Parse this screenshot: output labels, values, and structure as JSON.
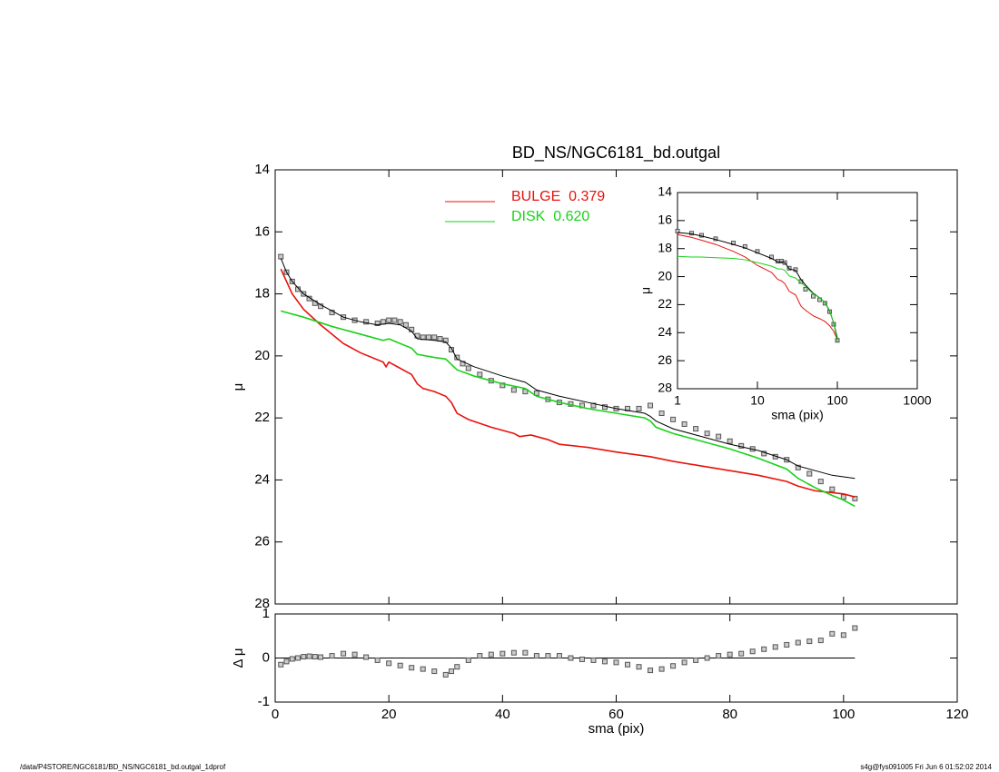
{
  "charts": [
    {
      "type": "line",
      "title": "BD_NS/NGC6181_bd.outgal",
      "ylabel": "μ",
      "xlim": [
        0,
        120
      ],
      "xticks": [
        0,
        20,
        40,
        60,
        80,
        100,
        120
      ],
      "ylim": [
        14,
        28
      ],
      "yticks": [
        14,
        16,
        18,
        20,
        22,
        24,
        26,
        28
      ],
      "y_inverted": true,
      "legend": "top-center",
      "series": [
        {
          "style": "marker",
          "color": "#555555",
          "x": [
            1,
            2,
            3,
            4,
            5,
            6,
            7,
            8,
            10,
            12,
            14,
            16,
            18,
            19,
            20,
            21,
            22,
            23,
            24,
            25,
            26,
            27,
            28,
            29,
            30,
            31,
            32,
            33,
            34,
            36,
            38,
            40,
            42,
            44,
            46,
            48,
            50,
            52,
            54,
            56,
            58,
            60,
            62,
            64,
            66,
            68,
            70,
            72,
            74,
            76,
            78,
            80,
            82,
            84,
            86,
            88,
            90,
            92,
            94,
            96,
            98,
            100,
            102
          ],
          "values": [
            16.8,
            17.3,
            17.6,
            17.85,
            18.0,
            18.15,
            18.3,
            18.4,
            18.6,
            18.75,
            18.85,
            18.9,
            18.95,
            18.9,
            18.85,
            18.85,
            18.9,
            19.0,
            19.15,
            19.35,
            19.4,
            19.4,
            19.4,
            19.45,
            19.5,
            19.8,
            20.05,
            20.25,
            20.4,
            20.6,
            20.8,
            20.95,
            21.1,
            21.15,
            21.2,
            21.4,
            21.5,
            21.55,
            21.6,
            21.6,
            21.65,
            21.7,
            21.7,
            21.7,
            21.6,
            21.85,
            22.05,
            22.2,
            22.35,
            22.5,
            22.6,
            22.75,
            22.9,
            23.0,
            23.15,
            23.25,
            23.35,
            23.6,
            23.8,
            24.05,
            24.3,
            24.55,
            24.6
          ]
        },
        {
          "style": "line",
          "color": "#000000",
          "x": [
            1,
            2,
            3,
            5,
            8,
            10,
            12,
            15,
            18,
            20,
            22,
            24,
            25,
            28,
            30,
            31,
            32,
            35,
            40,
            44,
            46,
            50,
            55,
            60,
            65,
            66,
            67,
            70,
            75,
            80,
            85,
            90,
            92,
            95,
            98,
            102
          ],
          "values": [
            16.85,
            17.3,
            17.6,
            18.0,
            18.35,
            18.55,
            18.75,
            18.9,
            19.0,
            18.95,
            19.0,
            19.2,
            19.45,
            19.5,
            19.55,
            19.75,
            20.1,
            20.35,
            20.65,
            20.85,
            21.1,
            21.3,
            21.5,
            21.7,
            21.85,
            21.95,
            22.1,
            22.35,
            22.6,
            22.85,
            23.05,
            23.35,
            23.55,
            23.7,
            23.85,
            23.95
          ]
        },
        {
          "style": "line",
          "name": "BULGE  0.379",
          "color": "#e8120c",
          "x": [
            1,
            2,
            3,
            5,
            8,
            10,
            12,
            15,
            19,
            19.5,
            20,
            22,
            24,
            25,
            26,
            28,
            30,
            31,
            32,
            34,
            38,
            42,
            43,
            45,
            48,
            50,
            55,
            60,
            66,
            70,
            75,
            80,
            85,
            90,
            92,
            95,
            100,
            102
          ],
          "values": [
            17.2,
            17.6,
            18.0,
            18.5,
            19.0,
            19.3,
            19.6,
            19.9,
            20.2,
            20.35,
            20.2,
            20.4,
            20.6,
            20.9,
            21.05,
            21.15,
            21.3,
            21.5,
            21.85,
            22.05,
            22.3,
            22.5,
            22.6,
            22.55,
            22.7,
            22.85,
            22.95,
            23.1,
            23.25,
            23.4,
            23.55,
            23.7,
            23.85,
            24.05,
            24.2,
            24.35,
            24.45,
            24.55
          ]
        },
        {
          "style": "line",
          "name": "DISK  0.620",
          "color": "#19d219",
          "x": [
            1,
            5,
            10,
            15,
            19,
            20,
            22,
            24,
            25,
            28,
            30,
            32,
            35,
            40,
            44,
            46,
            50,
            55,
            60,
            65,
            66,
            67,
            70,
            75,
            80,
            85,
            90,
            92,
            95,
            98,
            100,
            102
          ],
          "values": [
            18.55,
            18.75,
            19.05,
            19.3,
            19.5,
            19.45,
            19.6,
            19.75,
            19.95,
            20.05,
            20.1,
            20.45,
            20.65,
            20.9,
            21.05,
            21.3,
            21.5,
            21.7,
            21.85,
            22.0,
            22.1,
            22.3,
            22.5,
            22.75,
            23.0,
            23.3,
            23.65,
            23.95,
            24.25,
            24.5,
            24.65,
            24.85
          ]
        }
      ]
    },
    {
      "type": "scatter",
      "xlabel": "sma (pix)",
      "ylabel": "Δ μ",
      "xlim": [
        0,
        120
      ],
      "xticks": [
        0,
        20,
        40,
        60,
        80,
        100,
        120
      ],
      "ylim": [
        -1,
        1
      ],
      "yticks": [
        -1,
        0,
        1
      ],
      "color": "#555555",
      "x": [
        1,
        2,
        3,
        4,
        5,
        6,
        7,
        8,
        10,
        12,
        14,
        16,
        18,
        20,
        22,
        24,
        26,
        28,
        30,
        31,
        32,
        34,
        36,
        38,
        40,
        42,
        44,
        46,
        48,
        50,
        52,
        54,
        56,
        58,
        60,
        62,
        64,
        66,
        68,
        70,
        72,
        74,
        76,
        78,
        80,
        82,
        84,
        86,
        88,
        90,
        92,
        94,
        96,
        98,
        100,
        102
      ],
      "values": [
        -0.15,
        -0.08,
        -0.02,
        0.0,
        0.03,
        0.04,
        0.03,
        0.02,
        0.05,
        0.1,
        0.08,
        0.02,
        -0.05,
        -0.12,
        -0.17,
        -0.22,
        -0.25,
        -0.3,
        -0.38,
        -0.3,
        -0.2,
        -0.05,
        0.05,
        0.08,
        0.1,
        0.12,
        0.12,
        0.05,
        0.05,
        0.05,
        0.0,
        -0.03,
        -0.05,
        -0.08,
        -0.1,
        -0.15,
        -0.2,
        -0.28,
        -0.25,
        -0.18,
        -0.1,
        -0.05,
        0.0,
        0.05,
        0.08,
        0.1,
        0.15,
        0.2,
        0.25,
        0.3,
        0.35,
        0.38,
        0.4,
        0.55,
        0.52,
        0.68
      ]
    },
    {
      "type": "line",
      "xlabel": "sma (pix)",
      "ylabel": "μ",
      "xlog": true,
      "xlim": [
        1,
        1000
      ],
      "xticks": [
        1,
        10,
        100,
        1000
      ],
      "ylim": [
        14,
        28
      ],
      "yticks": [
        14,
        16,
        18,
        20,
        22,
        24,
        26,
        28
      ],
      "y_inverted": true,
      "series": [
        {
          "style": "marker",
          "color": "#555555",
          "x": [
            1,
            1.5,
            2,
            3,
            5,
            7,
            10,
            15,
            18,
            20,
            22,
            25,
            30,
            35,
            40,
            50,
            60,
            70,
            80,
            90,
            100
          ],
          "values": [
            16.75,
            16.9,
            17.05,
            17.3,
            17.6,
            17.85,
            18.2,
            18.6,
            18.9,
            18.9,
            19.0,
            19.4,
            19.5,
            20.35,
            20.9,
            21.4,
            21.65,
            21.9,
            22.5,
            23.4,
            24.55
          ]
        },
        {
          "style": "line",
          "color": "#000000",
          "x": [
            1,
            1.5,
            2,
            3,
            5,
            7,
            10,
            15,
            18,
            20,
            22,
            25,
            30,
            35,
            40,
            50,
            60,
            70,
            80,
            90,
            100
          ],
          "values": [
            16.85,
            16.95,
            17.1,
            17.35,
            17.7,
            17.95,
            18.3,
            18.7,
            18.95,
            18.95,
            19.0,
            19.45,
            19.55,
            20.2,
            20.6,
            21.2,
            21.5,
            21.85,
            22.45,
            23.3,
            24.4
          ]
        },
        {
          "style": "line",
          "color": "#e8120c",
          "x": [
            1,
            1.5,
            2,
            3,
            5,
            7,
            10,
            15,
            18,
            20,
            22,
            25,
            30,
            35,
            40,
            50,
            60,
            70,
            80,
            90,
            100
          ],
          "values": [
            17.0,
            17.2,
            17.4,
            17.7,
            18.2,
            18.6,
            19.2,
            19.7,
            20.2,
            20.3,
            20.5,
            21.05,
            21.3,
            22.1,
            22.4,
            22.8,
            23.0,
            23.2,
            23.5,
            23.9,
            24.5
          ]
        },
        {
          "style": "line",
          "color": "#19d219",
          "x": [
            1,
            1.5,
            2,
            3,
            5,
            7,
            10,
            15,
            18,
            20,
            22,
            25,
            30,
            35,
            40,
            50,
            60,
            70,
            80,
            90,
            100
          ],
          "values": [
            18.55,
            18.6,
            18.6,
            18.65,
            18.7,
            18.8,
            19.0,
            19.25,
            19.45,
            19.45,
            19.55,
            19.95,
            20.1,
            20.45,
            20.7,
            21.25,
            21.5,
            21.85,
            22.4,
            23.3,
            24.65
          ]
        }
      ]
    }
  ],
  "footer": {
    "left": "/data/P4STORE/NGC6181/BD_NS/NGC6181_bd.outgal_1dprof",
    "right": "s4g@fys091005  Fri Jun  6 01:52:02 2014"
  }
}
